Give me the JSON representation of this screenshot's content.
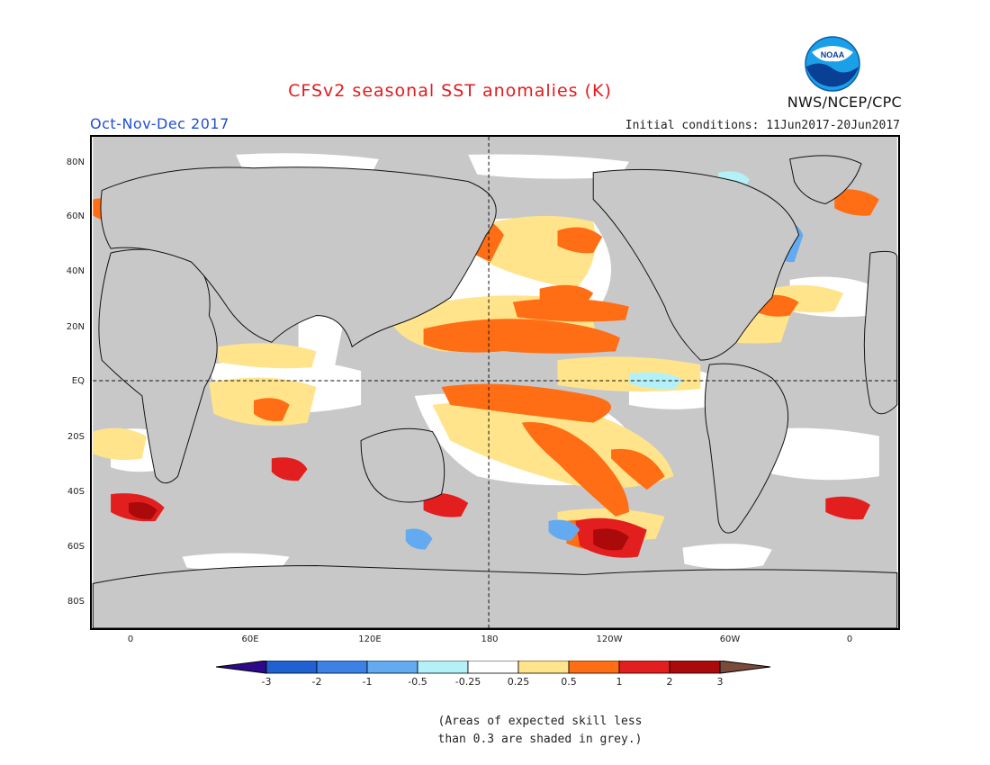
{
  "header": {
    "title": "CFSv2 seasonal SST anomalies (K)",
    "season": "Oct-Nov-Dec 2017",
    "initial_conditions": "Initial conditions: 11Jun2017-20Jun2017",
    "organization": "NWS/NCEP/CPC",
    "logo_text": "NOAA"
  },
  "axes": {
    "lat_labels": [
      "80N",
      "60N",
      "40N",
      "20N",
      "EQ",
      "20S",
      "40S",
      "60S",
      "80S"
    ],
    "lon_labels": [
      "0",
      "60E",
      "120E",
      "180",
      "120W",
      "60W",
      "0"
    ]
  },
  "colorbar": {
    "labels": [
      "-3",
      "-2",
      "-1",
      "-0.5",
      "-0.25",
      "0.25",
      "0.5",
      "1",
      "2",
      "3"
    ],
    "colors": [
      "#2c0a8a",
      "#2060d0",
      "#3c82e6",
      "#64aaf0",
      "#b4f0f8",
      "#ffffff",
      "#ffe48c",
      "#ff6e14",
      "#e31e1e",
      "#aa0a0a",
      "#7a4a3a"
    ]
  },
  "legend_colors": {
    "land": "#c8c8c8",
    "low_skill": "#c0c0c0",
    "warm_mid": "#ff6e14",
    "warm_light": "#ffe48c",
    "warm_strong": "#e31e1e",
    "warm_extreme": "#aa0a0a",
    "cool_light": "#b4f0f8",
    "cool_mid": "#64aaf0"
  },
  "note": {
    "line1": "(Areas of expected skill less",
    "line2": "than 0.3 are shaded in grey.)"
  }
}
